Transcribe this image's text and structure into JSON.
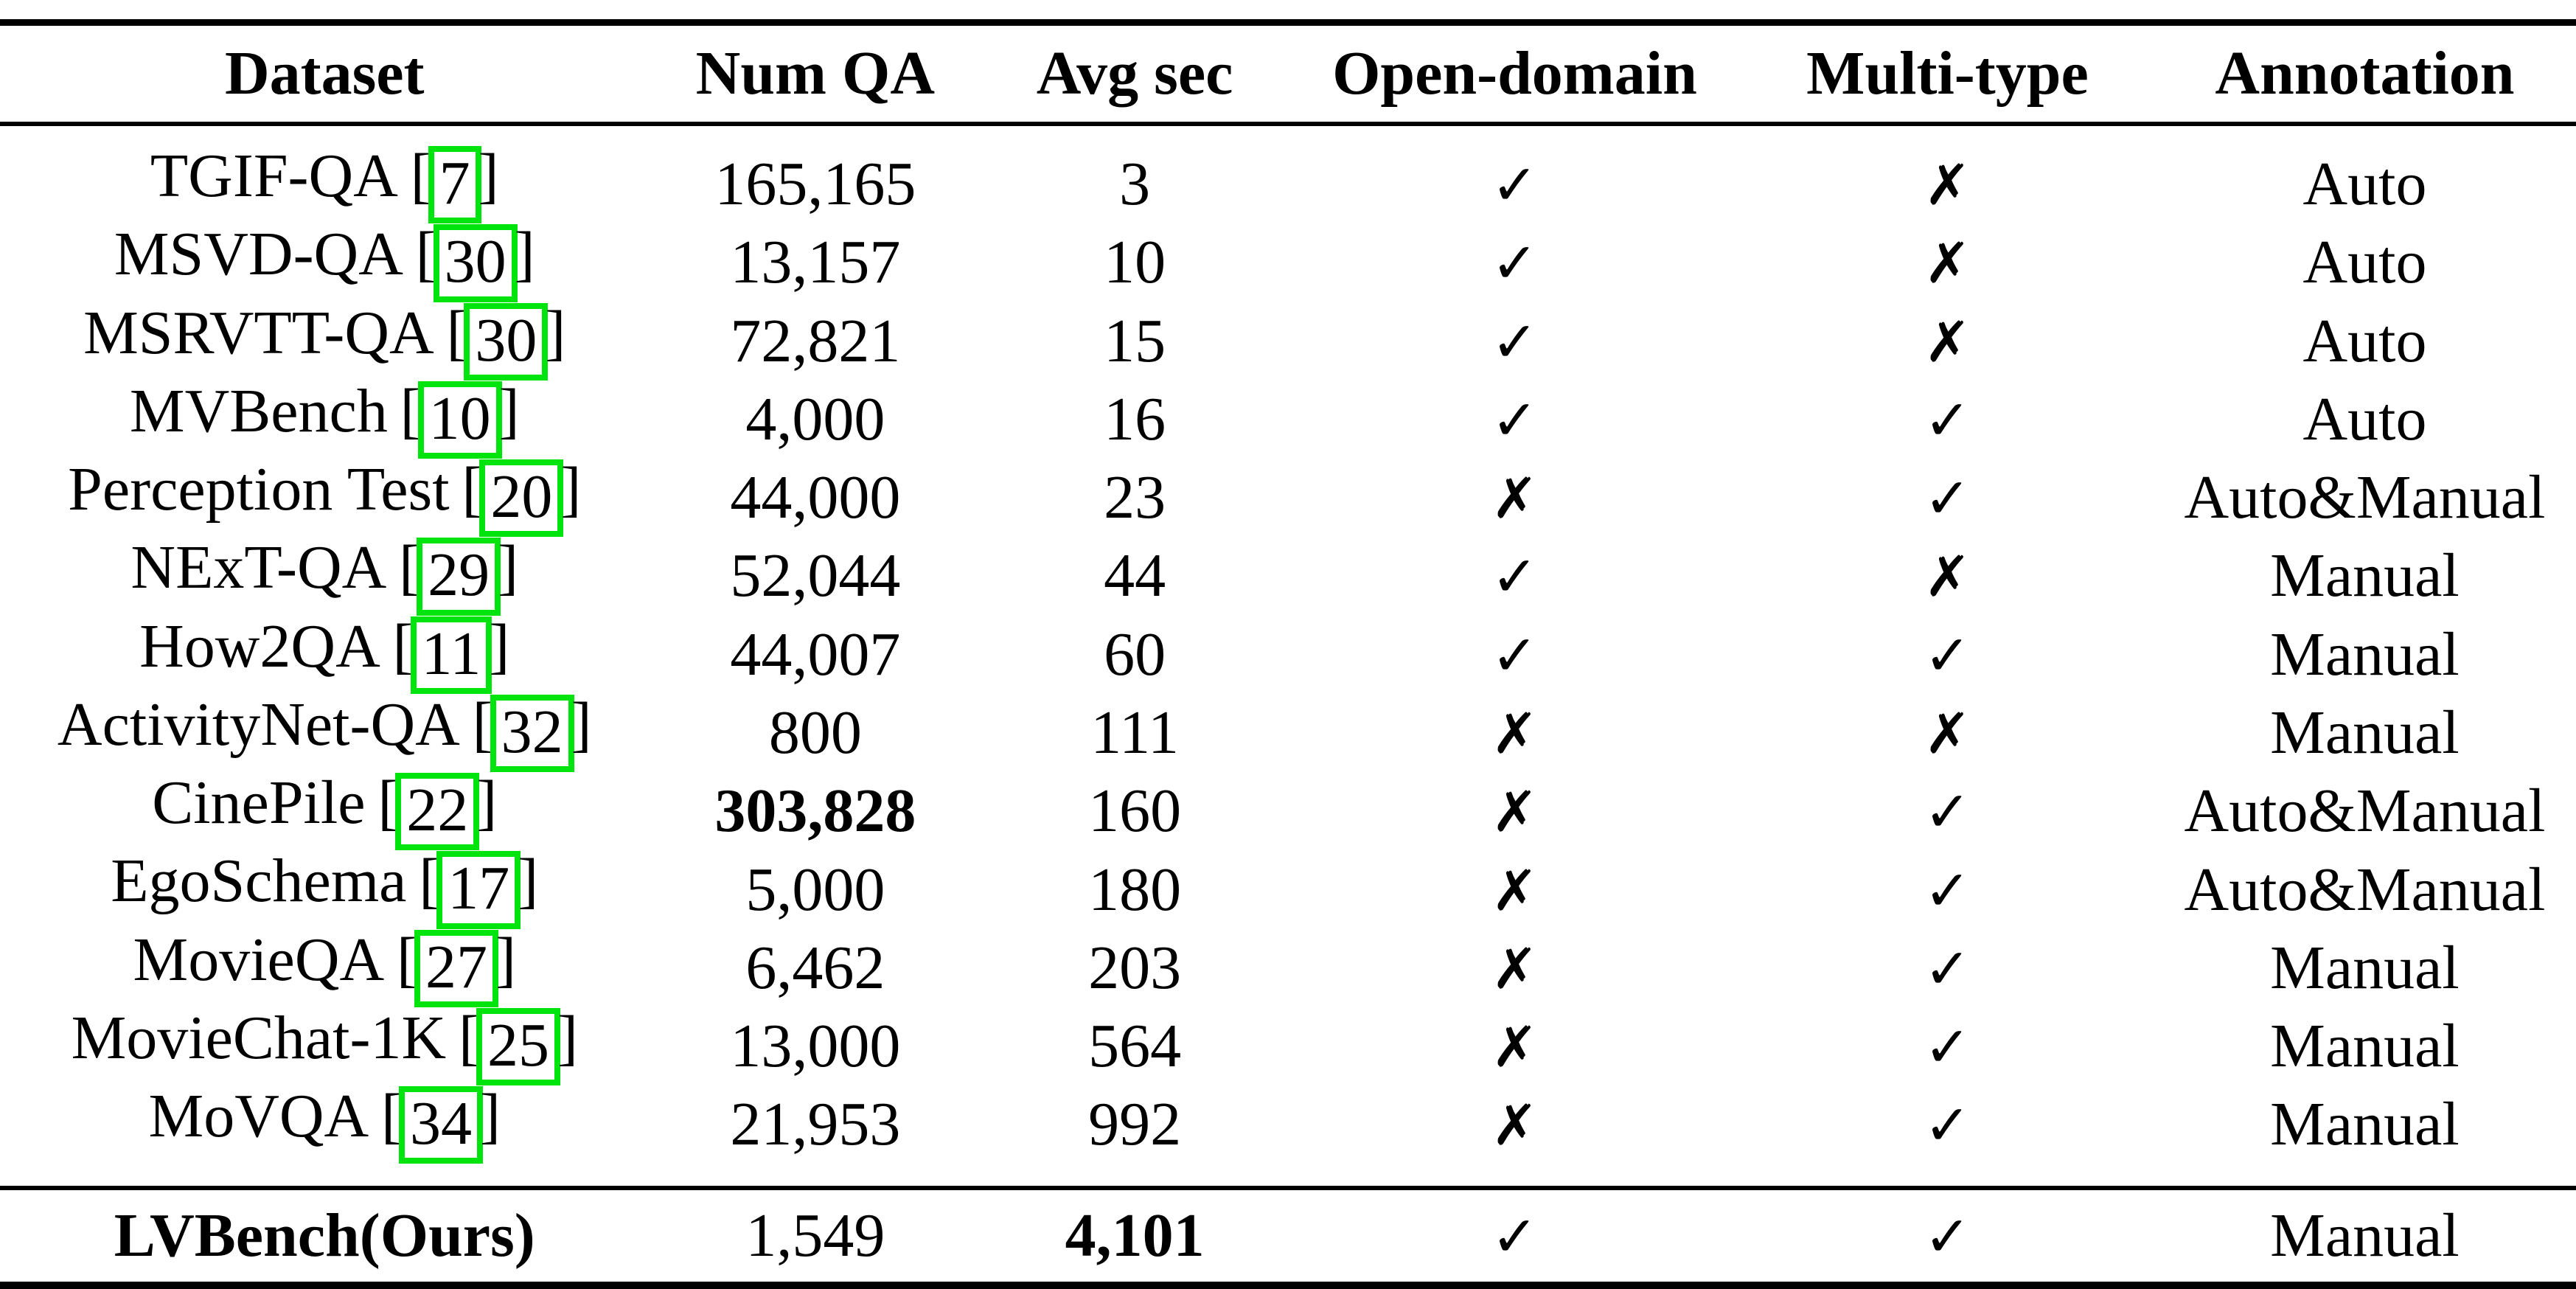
{
  "table": {
    "columns": [
      "Dataset",
      "Num QA",
      "Avg sec",
      "Open-domain",
      "Multi-type",
      "Annotation"
    ],
    "rows": [
      {
        "dataset": "TGIF-QA",
        "cite": "7",
        "num_qa": "165,165",
        "avg_sec": "3",
        "open_domain": true,
        "multi_type": false,
        "annotation": "Auto"
      },
      {
        "dataset": "MSVD-QA",
        "cite": "30",
        "num_qa": "13,157",
        "avg_sec": "10",
        "open_domain": true,
        "multi_type": false,
        "annotation": "Auto"
      },
      {
        "dataset": "MSRVTT-QA",
        "cite": "30",
        "num_qa": "72,821",
        "avg_sec": "15",
        "open_domain": true,
        "multi_type": false,
        "annotation": "Auto"
      },
      {
        "dataset": "MVBench",
        "cite": "10",
        "num_qa": "4,000",
        "avg_sec": "16",
        "open_domain": true,
        "multi_type": true,
        "annotation": "Auto"
      },
      {
        "dataset": "Perception Test",
        "cite": "20",
        "num_qa": "44,000",
        "avg_sec": "23",
        "open_domain": false,
        "multi_type": true,
        "annotation": "Auto&Manual"
      },
      {
        "dataset": "NExT-QA",
        "cite": "29",
        "num_qa": "52,044",
        "avg_sec": "44",
        "open_domain": true,
        "multi_type": false,
        "annotation": "Manual"
      },
      {
        "dataset": "How2QA",
        "cite": "11",
        "num_qa": "44,007",
        "avg_sec": "60",
        "open_domain": true,
        "multi_type": true,
        "annotation": "Manual"
      },
      {
        "dataset": "ActivityNet-QA",
        "cite": "32",
        "num_qa": "800",
        "avg_sec": "111",
        "open_domain": false,
        "multi_type": false,
        "annotation": "Manual"
      },
      {
        "dataset": "CinePile",
        "cite": "22",
        "num_qa": "303,828",
        "num_qa_bold": true,
        "avg_sec": "160",
        "open_domain": false,
        "multi_type": true,
        "annotation": "Auto&Manual"
      },
      {
        "dataset": "EgoSchema",
        "cite": "17",
        "num_qa": "5,000",
        "avg_sec": "180",
        "open_domain": false,
        "multi_type": true,
        "annotation": "Auto&Manual"
      },
      {
        "dataset": "MovieQA",
        "cite": "27",
        "num_qa": "6,462",
        "avg_sec": "203",
        "open_domain": false,
        "multi_type": true,
        "annotation": "Manual"
      },
      {
        "dataset": "MovieChat-1K",
        "cite": "25",
        "num_qa": "13,000",
        "avg_sec": "564",
        "open_domain": false,
        "multi_type": true,
        "annotation": "Manual"
      },
      {
        "dataset": "MoVQA",
        "cite": "34",
        "num_qa": "21,953",
        "avg_sec": "992",
        "open_domain": false,
        "multi_type": true,
        "annotation": "Manual"
      }
    ],
    "ours_row": {
      "dataset": "LVBench(Ours)",
      "dataset_bold": true,
      "cite": null,
      "num_qa": "1,549",
      "avg_sec": "4,101",
      "avg_sec_bold": true,
      "open_domain": true,
      "multi_type": true,
      "annotation": "Manual"
    }
  },
  "symbols": {
    "check": "✓",
    "cross": "✗",
    "bracket_open": "[",
    "bracket_close": "]"
  },
  "colors": {
    "cite_box_green": "#00e40d",
    "text": "#000000",
    "background": "#ffffff"
  }
}
